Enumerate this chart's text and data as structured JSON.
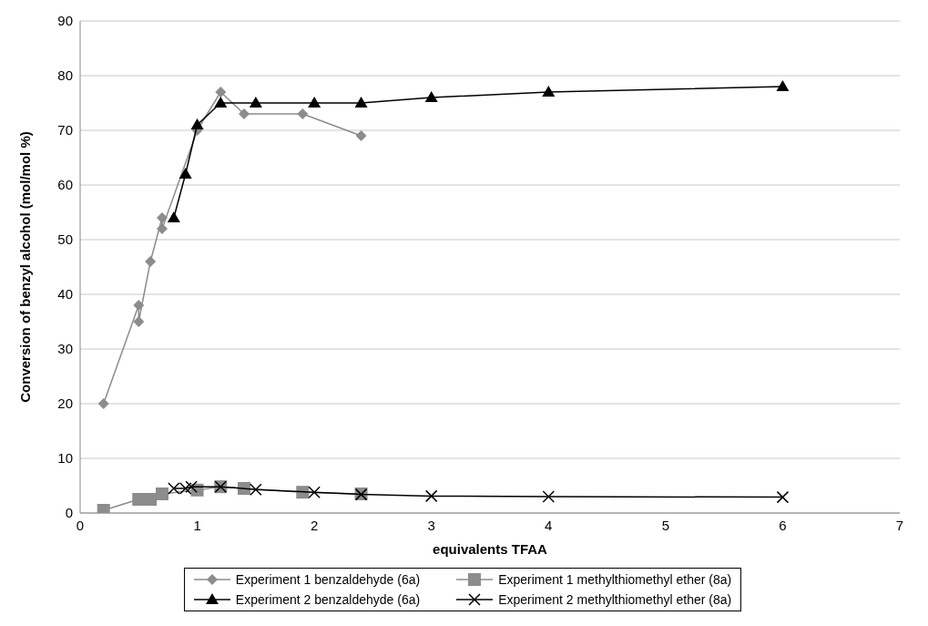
{
  "chart_data": {
    "type": "line",
    "xlabel": "equivalents TFAA",
    "ylabel": "Conversion of benzyl alcohol (mol/mol %)",
    "xlim": [
      0,
      7
    ],
    "xticks": [
      0,
      1,
      2,
      3,
      4,
      5,
      6,
      7
    ],
    "ylim": [
      0,
      90
    ],
    "yticks": [
      0,
      10,
      20,
      30,
      40,
      50,
      60,
      70,
      80,
      90
    ],
    "grid": "y",
    "legend": "bottom",
    "series": [
      {
        "name": "Experiment 1 benzaldehyde (6a)",
        "color": "#8c8c8c",
        "marker": "diamond",
        "x": [
          0.2,
          0.5,
          0.5,
          0.6,
          0.7,
          0.7,
          1.0,
          1.2,
          1.4,
          1.9,
          2.4
        ],
        "values": [
          20,
          38,
          35,
          46,
          54,
          52,
          70,
          77,
          73,
          73,
          69
        ]
      },
      {
        "name": "Experiment 1 methylthiomethyl ether (8a)",
        "color": "#8c8c8c",
        "marker": "square",
        "x": [
          0.2,
          0.5,
          0.6,
          0.7,
          1.0,
          1.2,
          1.4,
          1.9,
          2.4
        ],
        "values": [
          0.5,
          2.5,
          2.5,
          3.5,
          4.2,
          4.8,
          4.5,
          3.8,
          3.5
        ]
      },
      {
        "name": "Experiment 2 benzaldehyde (6a)",
        "color": "#000000",
        "marker": "triangle",
        "x": [
          0.8,
          0.9,
          1.0,
          1.2,
          1.5,
          2,
          2.4,
          3,
          4,
          6
        ],
        "values": [
          54,
          62,
          71,
          75,
          75,
          75,
          75,
          76,
          77,
          78
        ]
      },
      {
        "name": "Experiment 2 methylthiomethyl ether (8a)",
        "color": "#000000",
        "marker": "cross",
        "x": [
          0.8,
          0.9,
          0.95,
          1.2,
          1.5,
          2,
          2.4,
          3,
          4,
          6
        ],
        "values": [
          4.5,
          4.5,
          4.8,
          4.8,
          4.3,
          3.8,
          3.4,
          3.1,
          3.0,
          2.9
        ]
      }
    ]
  }
}
